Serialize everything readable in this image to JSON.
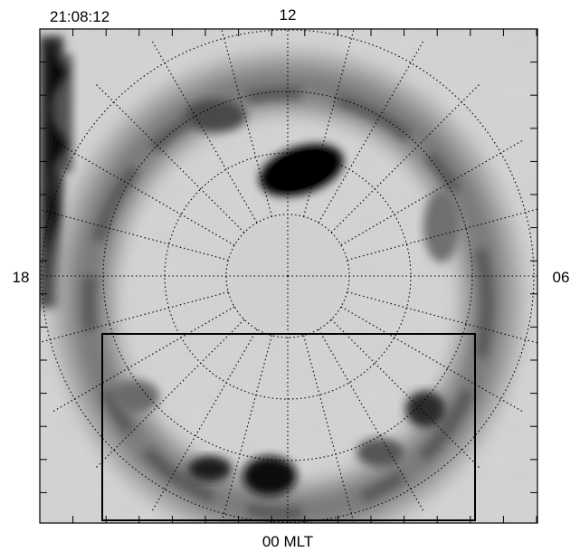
{
  "timestamp": "21:08:12",
  "mlt_labels": {
    "top": "12",
    "left": "18",
    "right": "06",
    "bottom": "00 MLT"
  },
  "colors": {
    "background_field": "#d2d2d2",
    "oval_dark": "#0a0a0a",
    "grid": "#000000",
    "frame": "#000000"
  },
  "grid": {
    "meridian_spacing_hours": 1,
    "latitude_ring_count": 4,
    "line_style": "dotted"
  },
  "selection_box": {
    "shown": true
  },
  "colorscale": "grayscale, darker = brighter emission"
}
